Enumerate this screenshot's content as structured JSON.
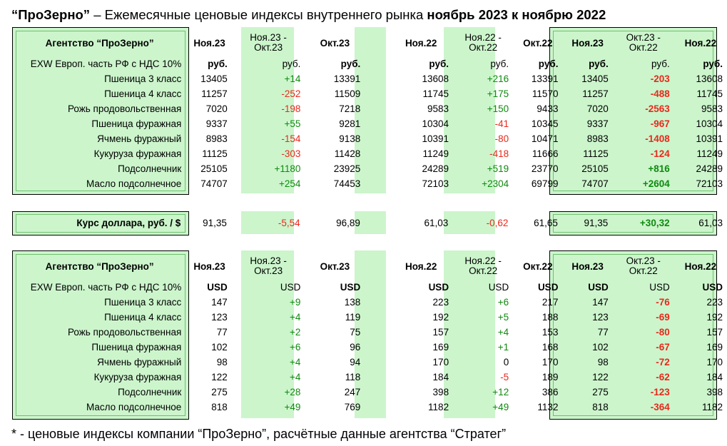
{
  "title": {
    "brand": "“ПроЗерно”",
    "middle": " – Ежемесячные ценовые индексы внутреннего рынка ",
    "period": "ноябрь 2023 к ноябрю 2022"
  },
  "footnote": "* - ценовые индексы компании “ПроЗерно”, расчётные данные агентства “Стратег”",
  "columns": {
    "c1": "Ноя.23",
    "c2": [
      "Ноя.23 -",
      "Окт.23"
    ],
    "c3": "Окт.23",
    "c4": "Ноя.22",
    "c5": [
      "Ноя.22 -",
      "Окт.22"
    ],
    "c6": "Окт.22",
    "c7": "Ноя.23",
    "c8": [
      "Окт.23 -",
      "Окт.22"
    ],
    "c9": "Ноя.22"
  },
  "table_rub": {
    "agency": "Агентство “ПроЗерно”",
    "subheader": "EXW Европ. часть РФ с НДС  10%",
    "units": [
      "руб.",
      "руб.",
      "руб.",
      "руб.",
      "руб.",
      "руб.",
      "руб.",
      "руб.",
      "руб."
    ],
    "rows": [
      {
        "label": "Пшеница  3 класс",
        "v": [
          "13405",
          "+14",
          "13391",
          "13608",
          "+216",
          "13391",
          "13405",
          "-203",
          "13608"
        ]
      },
      {
        "label": "Пшеница  4 класс",
        "v": [
          "11257",
          "-252",
          "11509",
          "11745",
          "+175",
          "11570",
          "11257",
          "-488",
          "11745"
        ]
      },
      {
        "label": "Рожь продовольственная",
        "v": [
          "7020",
          "-198",
          "7218",
          "9583",
          "+150",
          "9433",
          "7020",
          "-2563",
          "9583"
        ]
      },
      {
        "label": "Пшеница  фуражная",
        "v": [
          "9337",
          "+55",
          "9281",
          "10304",
          "-41",
          "10345",
          "9337",
          "-967",
          "10304"
        ]
      },
      {
        "label": "Ячмень фуражный",
        "v": [
          "8983",
          "-154",
          "9138",
          "10391",
          "-80",
          "10471",
          "8983",
          "-1408",
          "10391"
        ]
      },
      {
        "label": "Кукуруза фуражная",
        "v": [
          "11125",
          "-303",
          "11428",
          "11249",
          "-418",
          "11666",
          "11125",
          "-124",
          "11249"
        ]
      },
      {
        "label": "Подсолнечник",
        "v": [
          "25105",
          "+1180",
          "23925",
          "24289",
          "+519",
          "23770",
          "25105",
          "+816",
          "24289"
        ]
      },
      {
        "label": "Масло подсолнечное",
        "v": [
          "74707",
          "+254",
          "74453",
          "72103",
          "+2304",
          "69799",
          "74707",
          "+2604",
          "72103"
        ]
      }
    ]
  },
  "dollar_rate": {
    "label": "Курс доллара,  руб. / $",
    "v": [
      "91,35",
      "-5,54",
      "96,89",
      "61,03",
      "-0,62",
      "61,65",
      "91,35",
      "+30,32",
      "61,03"
    ]
  },
  "table_usd": {
    "agency": "Агентство “ПроЗерно”",
    "subheader": "EXW Европ. часть РФ с НДС  10%",
    "units": [
      "USD",
      "USD",
      "USD",
      "USD",
      "USD",
      "USD",
      "USD",
      "USD",
      "USD"
    ],
    "rows": [
      {
        "label": "Пшеница  3 класс",
        "v": [
          "147",
          "+9",
          "138",
          "223",
          "+6",
          "217",
          "147",
          "-76",
          "223"
        ]
      },
      {
        "label": "Пшеница  4 класс",
        "v": [
          "123",
          "+4",
          "119",
          "192",
          "+5",
          "188",
          "123",
          "-69",
          "192"
        ]
      },
      {
        "label": "Рожь продовольственная",
        "v": [
          "77",
          "+2",
          "75",
          "157",
          "+4",
          "153",
          "77",
          "-80",
          "157"
        ]
      },
      {
        "label": "Пшеница  фуражная",
        "v": [
          "102",
          "+6",
          "96",
          "169",
          "+1",
          "168",
          "102",
          "-67",
          "169"
        ]
      },
      {
        "label": "Ячмень фуражный",
        "v": [
          "98",
          "+4",
          "94",
          "170",
          "0",
          "170",
          "98",
          "-72",
          "170"
        ]
      },
      {
        "label": "Кукуруза фуражная",
        "v": [
          "122",
          "+4",
          "118",
          "184",
          "-5",
          "189",
          "122",
          "-62",
          "184"
        ]
      },
      {
        "label": "Подсолнечник",
        "v": [
          "275",
          "+28",
          "247",
          "398",
          "+12",
          "386",
          "275",
          "-123",
          "398"
        ]
      },
      {
        "label": "Масло подсолнечное",
        "v": [
          "818",
          "+49",
          "769",
          "1182",
          "+49",
          "1132",
          "818",
          "-364",
          "1182"
        ]
      }
    ]
  },
  "colors": {
    "highlight_green": "#ccf5cc",
    "positive": "#0f8a0f",
    "negative": "#e8291c"
  }
}
